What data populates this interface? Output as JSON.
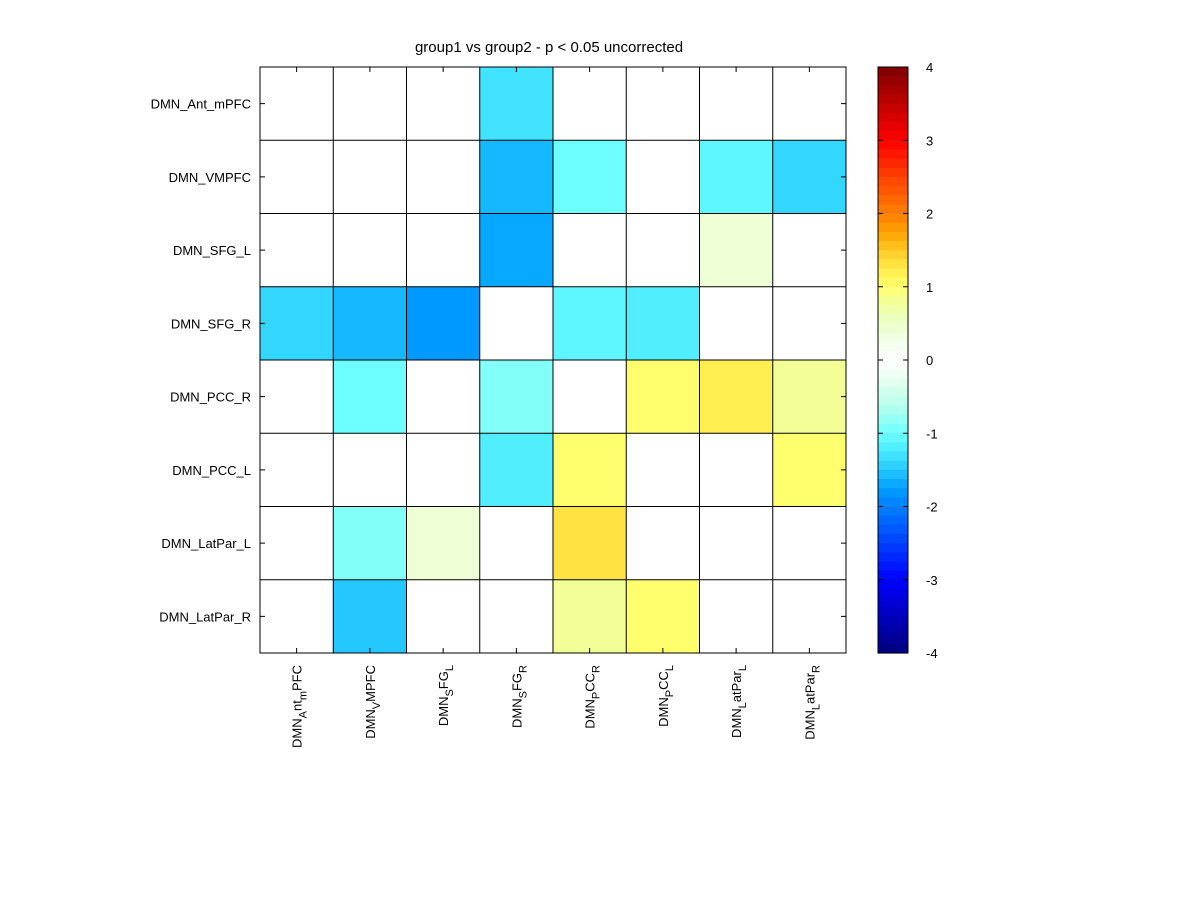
{
  "chart_data": {
    "type": "heatmap",
    "title": "group1 vs group2 - p < 0.05 uncorrected",
    "rows": [
      "DMN_Ant_mPFC",
      "DMN_VMPFC",
      "DMN_SFG_L",
      "DMN_SFG_R",
      "DMN_PCC_R",
      "DMN_PCC_L",
      "DMN_LatPar_L",
      "DMN_LatPar_R"
    ],
    "columns": [
      {
        "parts": [
          {
            "t": "DMN",
            "s": 0
          },
          {
            "t": "A",
            "s": 1
          },
          {
            "t": "nt",
            "s": 0
          },
          {
            "t": "m",
            "s": 1
          },
          {
            "t": "PFC",
            "s": 0
          }
        ]
      },
      {
        "parts": [
          {
            "t": "DMN",
            "s": 0
          },
          {
            "t": "V",
            "s": 1
          },
          {
            "t": "MPFC",
            "s": 0
          }
        ]
      },
      {
        "parts": [
          {
            "t": "DMN",
            "s": 0
          },
          {
            "t": "S",
            "s": 1
          },
          {
            "t": "FG",
            "s": 0
          },
          {
            "t": "L",
            "s": 1
          }
        ]
      },
      {
        "parts": [
          {
            "t": "DMN",
            "s": 0
          },
          {
            "t": "S",
            "s": 1
          },
          {
            "t": "FG",
            "s": 0
          },
          {
            "t": "R",
            "s": 1
          }
        ]
      },
      {
        "parts": [
          {
            "t": "DMN",
            "s": 0
          },
          {
            "t": "P",
            "s": 1
          },
          {
            "t": "CC",
            "s": 0
          },
          {
            "t": "R",
            "s": 1
          }
        ]
      },
      {
        "parts": [
          {
            "t": "DMN",
            "s": 0
          },
          {
            "t": "P",
            "s": 1
          },
          {
            "t": "CC",
            "s": 0
          },
          {
            "t": "L",
            "s": 1
          }
        ]
      },
      {
        "parts": [
          {
            "t": "DMN",
            "s": 0
          },
          {
            "t": "L",
            "s": 1
          },
          {
            "t": "atPar",
            "s": 0
          },
          {
            "t": "L",
            "s": 1
          }
        ]
      },
      {
        "parts": [
          {
            "t": "DMN",
            "s": 0
          },
          {
            "t": "L",
            "s": 1
          },
          {
            "t": "atPar",
            "s": 0
          },
          {
            "t": "R",
            "s": 1
          }
        ]
      }
    ],
    "values": [
      [
        0,
        0,
        0,
        -1.3,
        0,
        0,
        0,
        0
      ],
      [
        0,
        0,
        0,
        -1.6,
        -1.0,
        0,
        -1.1,
        -1.4
      ],
      [
        0,
        0,
        0,
        -1.7,
        0,
        0,
        0.4,
        0
      ],
      [
        -1.4,
        -1.6,
        -1.8,
        0,
        -1.1,
        -1.2,
        0,
        0
      ],
      [
        0,
        -1.0,
        0,
        -0.9,
        0,
        1.0,
        1.2,
        0.8
      ],
      [
        0,
        0,
        0,
        -1.2,
        1.0,
        0,
        0,
        1.0
      ],
      [
        0,
        -0.9,
        0.4,
        0,
        1.3,
        0,
        0,
        0
      ],
      [
        0,
        -1.5,
        0,
        0,
        0.8,
        1.0,
        0,
        0
      ]
    ],
    "colormap": "jet",
    "colorbar": {
      "min": -4,
      "max": 4,
      "ticks": [
        "4",
        "3",
        "2",
        "1",
        "0",
        "-1",
        "-2",
        "-3",
        "-4"
      ]
    },
    "grid": true,
    "legend": "colorbar-right"
  }
}
